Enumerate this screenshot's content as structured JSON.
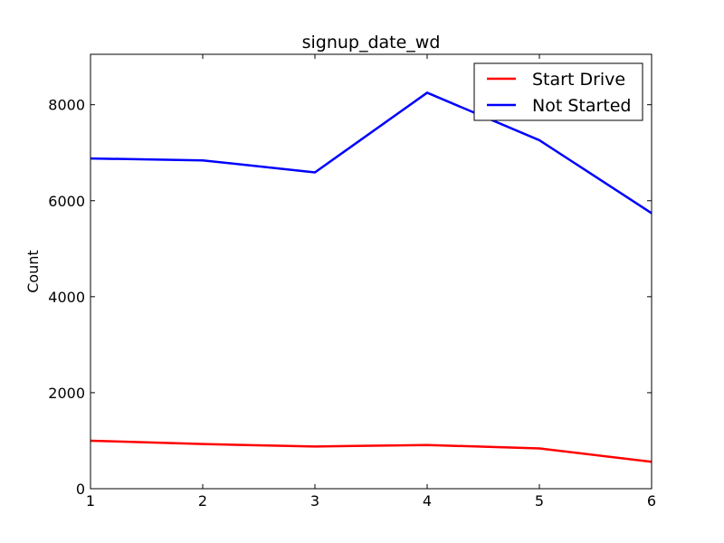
{
  "chart_data": {
    "type": "line",
    "title": "signup_date_wd",
    "xlabel": "",
    "ylabel": "Count",
    "x": [
      1,
      2,
      3,
      4,
      5,
      6
    ],
    "xlim": [
      1,
      6
    ],
    "ylim": [
      0,
      9050
    ],
    "xticks": [
      1,
      2,
      3,
      4,
      5,
      6
    ],
    "yticks": [
      0,
      2000,
      4000,
      6000,
      8000
    ],
    "grid": false,
    "legend_position": "top-right",
    "series": [
      {
        "name": "Start Drive",
        "color": "#ff0000",
        "values": [
          1000,
          930,
          880,
          910,
          840,
          560
        ]
      },
      {
        "name": "Not Started",
        "color": "#0000ff",
        "values": [
          6880,
          6840,
          6590,
          8250,
          7260,
          5740
        ]
      }
    ]
  }
}
